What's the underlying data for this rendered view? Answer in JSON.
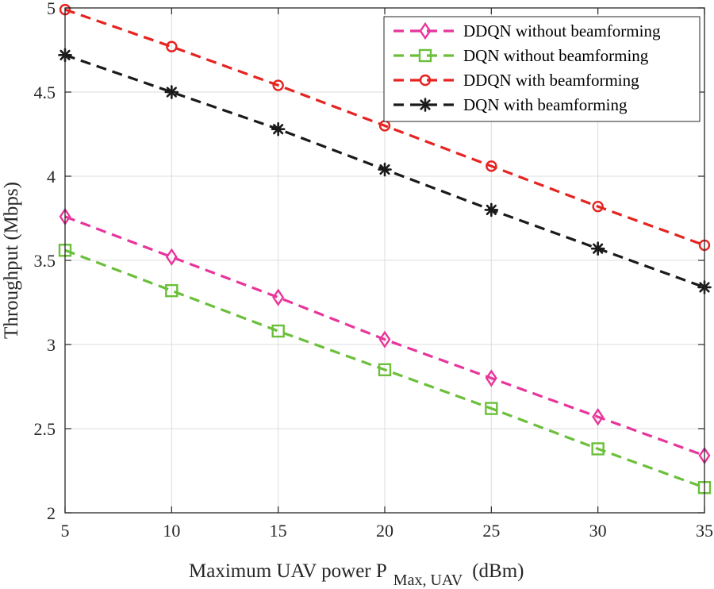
{
  "chart_data": {
    "type": "line",
    "xlabel": "Maximum UAV power P",
    "xlabel_sub": "Max, UAV",
    "xlabel_unit": "(dBm)",
    "ylabel": "Throughput (Mbps)",
    "xlim": [
      5,
      35
    ],
    "ylim": [
      2,
      5
    ],
    "x_ticks": [
      5,
      10,
      15,
      20,
      25,
      30,
      35
    ],
    "y_ticks": [
      2,
      2.5,
      3,
      3.5,
      4,
      4.5,
      5
    ],
    "y_tick_labels": [
      "2",
      "2.5",
      "3",
      "3.5",
      "4",
      "4.5",
      "5"
    ],
    "grid": true,
    "legend_position": "top-right",
    "x": [
      5,
      10,
      15,
      20,
      25,
      30,
      35
    ],
    "series": [
      {
        "name": "DDQN without beamforming",
        "color": "#e8359b",
        "marker": "diamond",
        "values": [
          3.76,
          3.52,
          3.28,
          3.03,
          2.8,
          2.57,
          2.34
        ]
      },
      {
        "name": "DQN without beamforming",
        "color": "#6bbf3a",
        "marker": "square",
        "values": [
          3.56,
          3.32,
          3.08,
          2.85,
          2.62,
          2.38,
          2.15
        ]
      },
      {
        "name": "DDQN with beamforming",
        "color": "#e52421",
        "marker": "circle",
        "values": [
          4.99,
          4.77,
          4.54,
          4.3,
          4.06,
          3.82,
          3.59
        ]
      },
      {
        "name": "DQN with beamforming",
        "color": "#1a1a1a",
        "marker": "asterisk",
        "values": [
          4.72,
          4.5,
          4.28,
          4.04,
          3.8,
          3.57,
          3.34
        ]
      }
    ]
  }
}
